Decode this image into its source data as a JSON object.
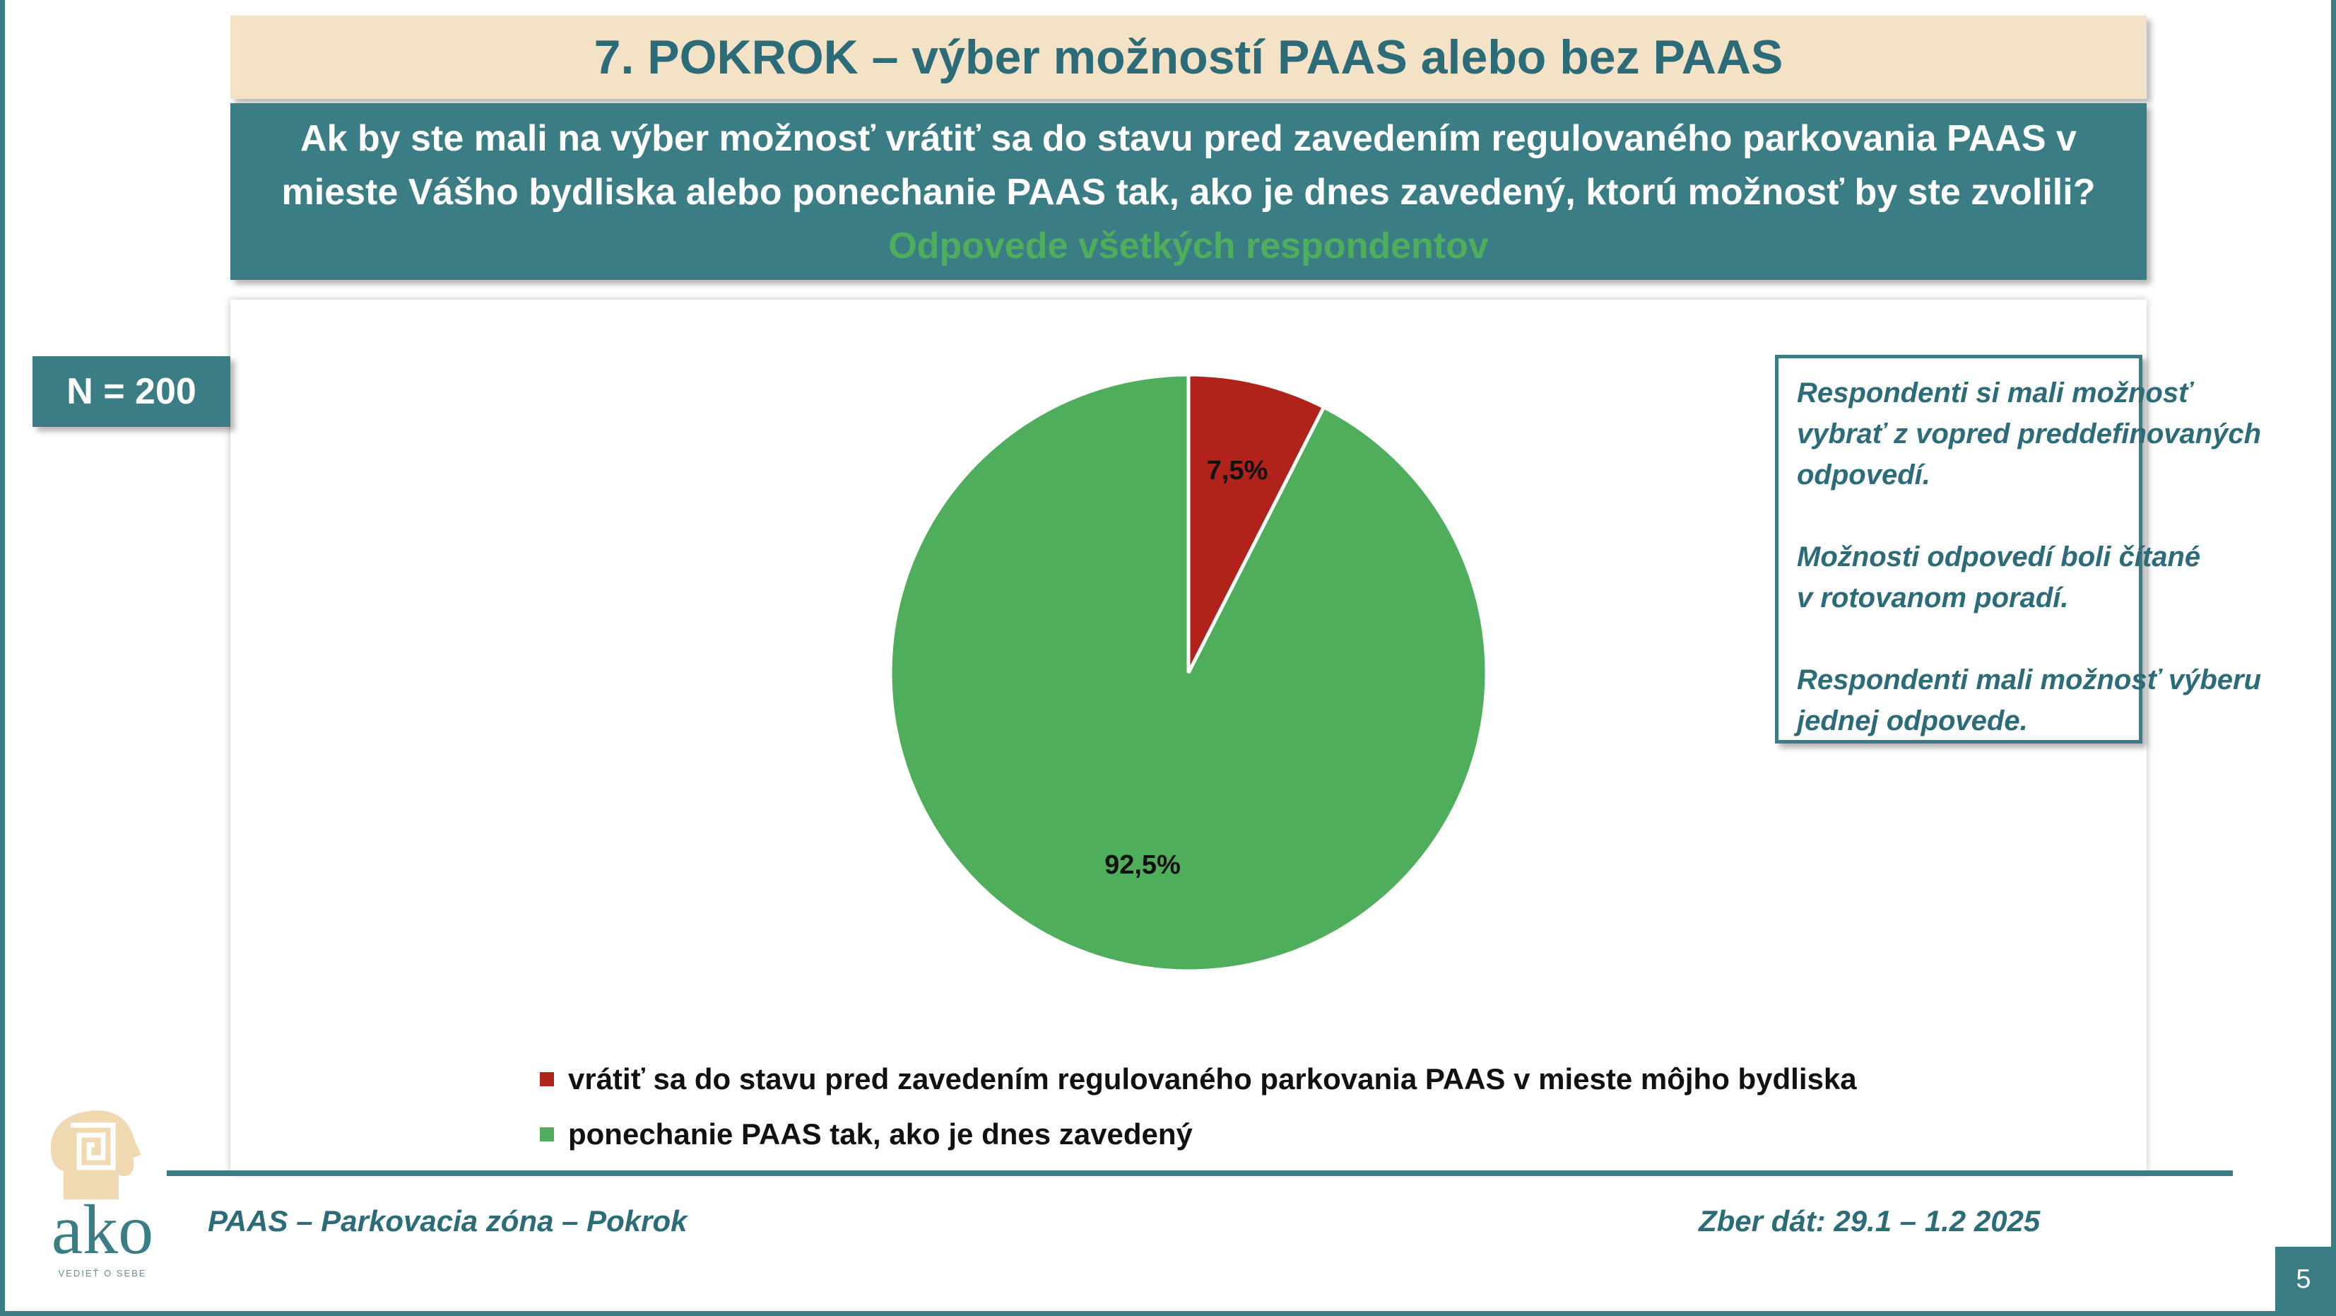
{
  "header": {
    "title": "7. POKROK – výber možností PAAS alebo bez PAAS"
  },
  "question": {
    "lines": [
      "Ak by ste mali na výber možnosť vrátiť sa do stavu pred zavedením regulovaného parkovania PAAS  v",
      "mieste Vášho bydliska alebo ponechanie PAAS tak, ako je dnes zavedený, ktorú možnosť by ste zvolili?"
    ],
    "subtitle": "Odpovede všetkých respondentov"
  },
  "sample": {
    "label": "N = 200"
  },
  "note": {
    "paragraphs": [
      [
        "Respondenti si mali možnosť",
        "vybrať z vopred preddefinovaných",
        "odpovedí."
      ],
      [
        "Možnosti odpovedí boli čítané",
        "v rotovanom poradí."
      ],
      [
        "Respondenti mali možnosť výberu",
        "jednej odpovede."
      ]
    ]
  },
  "footer": {
    "left": "PAAS – Parkovacia zóna – Pokrok",
    "right": "Zber dát: 29.1 – 1.2 2025",
    "page_number": "5"
  },
  "logo": {
    "text": "ako",
    "tagline": "VEDIEŤ O SEBE"
  },
  "colors": {
    "teal": "#3a7d85",
    "beige": "#f3e2c6",
    "red": "#b0221a",
    "green": "#4eae5b"
  },
  "chart_data": {
    "type": "pie",
    "slices": [
      {
        "label": "vrátiť sa do stavu pred zavedením regulovaného parkovania PAAS v mieste môjho bydliska",
        "value": 7.5,
        "display": "7,5%",
        "color": "#b0221a"
      },
      {
        "label": "ponechanie PAAS tak, ako je dnes zavedený",
        "value": 92.5,
        "display": "92,5%",
        "color": "#4eae5b"
      }
    ],
    "legend_position": "bottom"
  }
}
